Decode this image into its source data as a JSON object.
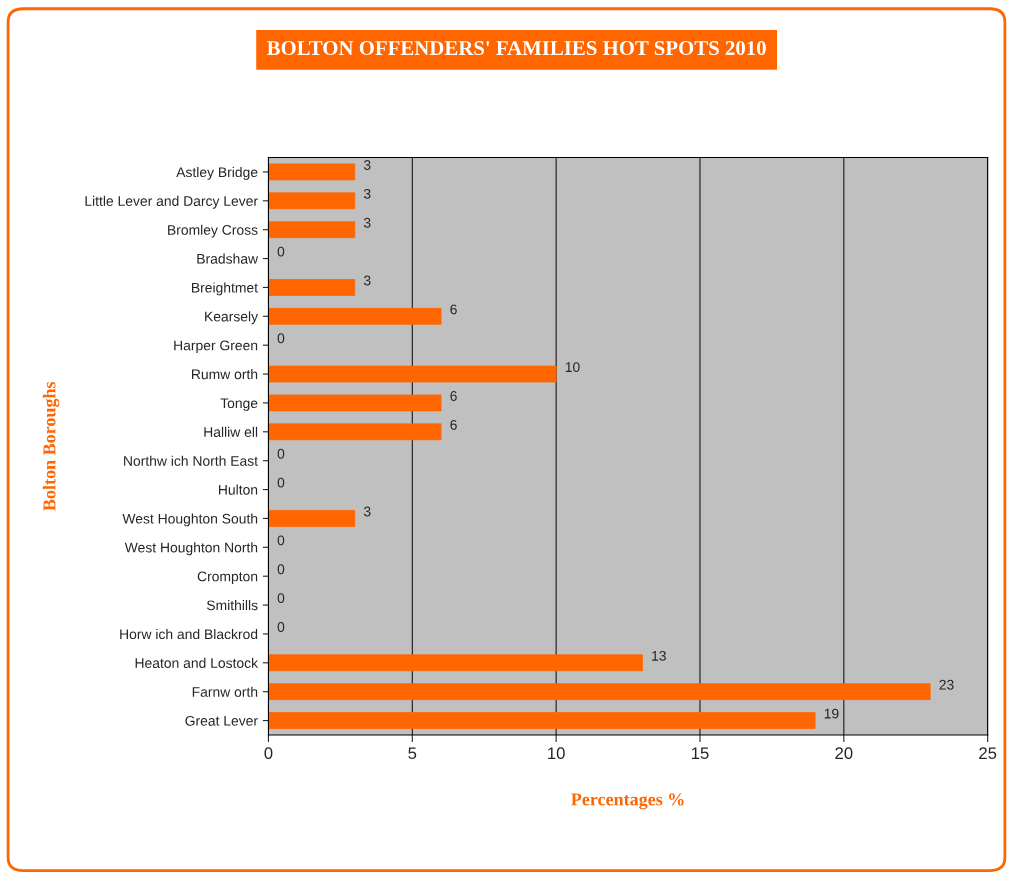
{
  "chart_data": {
    "type": "bar",
    "orientation": "horizontal",
    "title": "BOLTON OFFENDERS' FAMILIES HOT SPOTS 2010",
    "xlabel": "Percentages %",
    "ylabel": "Bolton Boroughs",
    "categories": [
      "Astley Bridge",
      "Little Lever and Darcy Lever",
      "Bromley Cross",
      "Bradshaw",
      "Breightmet",
      "Kearsely",
      "Harper Green",
      "Rumw orth",
      "Tonge",
      "Halliw ell",
      "Northw ich North East",
      "Hulton",
      "West Houghton South",
      "West Houghton North",
      "Crompton",
      "Smithills",
      "Horw ich and Blackrod",
      "Heaton and Lostock",
      "Farnw orth",
      "Great Lever"
    ],
    "values": [
      3,
      3,
      3,
      0,
      3,
      6,
      0,
      10,
      6,
      6,
      0,
      0,
      3,
      0,
      0,
      0,
      0,
      13,
      23,
      19
    ],
    "color": "#ff6600",
    "xlim": [
      0,
      25
    ],
    "xticks": [
      0,
      5,
      10,
      15,
      20,
      25
    ],
    "grid": "x",
    "data_labels": true,
    "legend": false
  }
}
